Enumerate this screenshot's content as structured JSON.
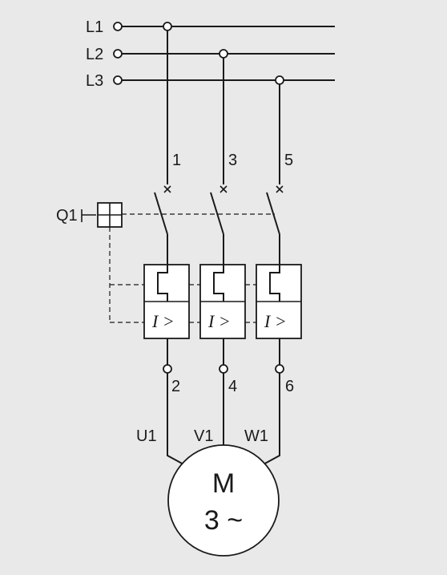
{
  "lines": {
    "l1": "L1",
    "l2": "L2",
    "l3": "L3"
  },
  "breaker": {
    "label": "Q1"
  },
  "terminals": {
    "t1": "1",
    "t3": "3",
    "t5": "5",
    "t2": "2",
    "t4": "4",
    "t6": "6"
  },
  "motor": {
    "u": "U1",
    "v": "V1",
    "w": "W1",
    "symbol": "M",
    "phase": "3 ~"
  },
  "overcurrent": {
    "label": "I >"
  }
}
